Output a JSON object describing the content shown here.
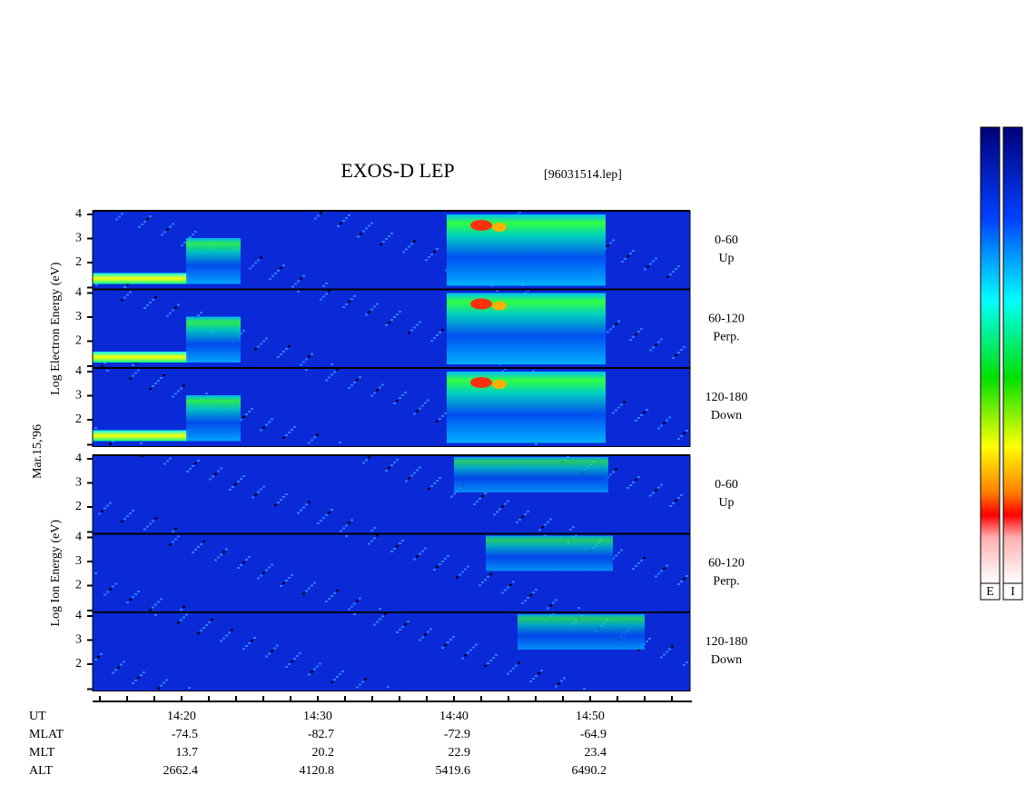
{
  "title": "EXOS-D LEP",
  "file": "[96031514.lep]",
  "date": "Mar.15,'96",
  "groups": [
    {
      "label": "Log  Electron  Energy (eV)",
      "yticks": [
        2,
        3,
        4
      ],
      "panels": [
        {
          "range": "0-60",
          "direction": "Up"
        },
        {
          "range": "60-120",
          "direction": "Perp."
        },
        {
          "range": "120-180",
          "direction": "Down"
        }
      ]
    },
    {
      "label": "Log  Ion  Energy (eV)",
      "yticks": [
        2,
        3,
        4
      ],
      "panels": [
        {
          "range": "0-60",
          "direction": "Up"
        },
        {
          "range": "60-120",
          "direction": "Perp."
        },
        {
          "range": "120-180",
          "direction": "Down"
        }
      ]
    }
  ],
  "time_labels": [
    "14:20",
    "14:30",
    "14:40",
    "14:50"
  ],
  "ephemeris": [
    {
      "name": "UT",
      "values": []
    },
    {
      "name": "MLAT",
      "values": [
        "-74.5",
        "-82.7",
        "-72.9",
        "-64.9"
      ]
    },
    {
      "name": "MLT",
      "values": [
        "13.7",
        "20.2",
        "22.9",
        "23.4"
      ]
    },
    {
      "name": "ALT",
      "values": [
        "2662.4",
        "4120.8",
        "5419.6",
        "6490.2"
      ]
    }
  ],
  "colorbars": [
    "E",
    "I"
  ]
}
